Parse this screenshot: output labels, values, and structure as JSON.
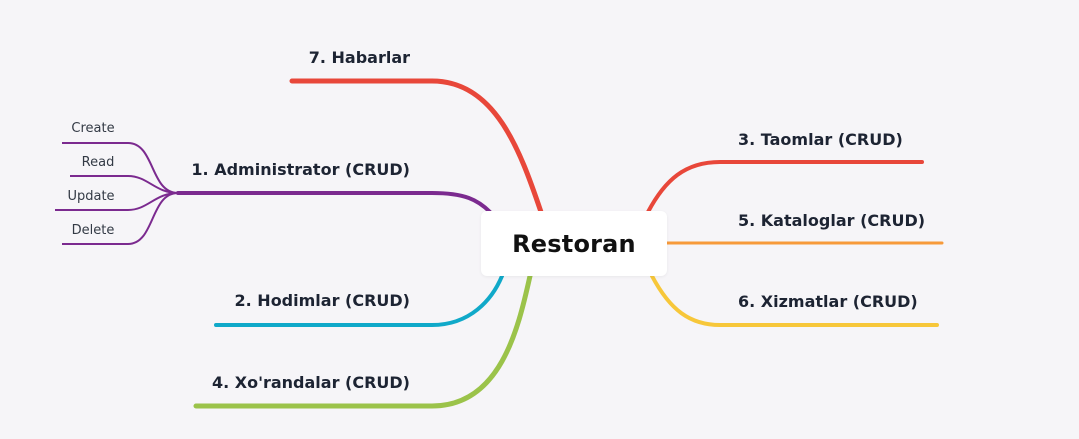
{
  "root": {
    "label": "Restoran"
  },
  "colors": {
    "background": "#f6f5f8",
    "habarlar": "#e8473a",
    "administrator": "#7b2a8f",
    "hodimlar": "#10a9c9",
    "xorandalar": "#9bc34a",
    "taomlar": "#e8473a",
    "kataloglar": "#f79a3a",
    "xizmatlar": "#f7c73a"
  },
  "branches": {
    "habarlar": "7. Habarlar",
    "administrator": "1. Administrator (CRUD)",
    "hodimlar": "2. Hodimlar (CRUD)",
    "xorandalar": "4. Xo'randalar (CRUD)",
    "taomlar": "3. Taomlar (CRUD)",
    "kataloglar": "5. Kataloglar (CRUD)",
    "xizmatlar": "6. Xizmatlar (CRUD)"
  },
  "administrator_children": [
    "Create",
    "Read",
    "Update",
    "Delete"
  ]
}
